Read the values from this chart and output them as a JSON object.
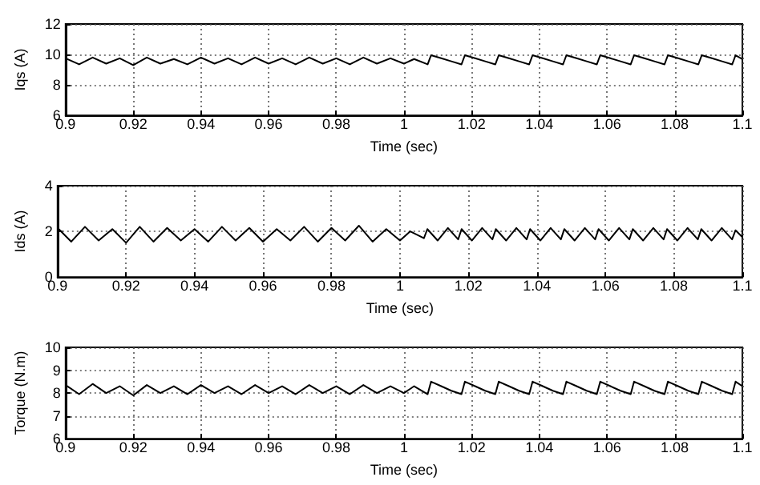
{
  "chart_data": [
    {
      "type": "line",
      "xlabel": "Time (sec)",
      "ylabel": "Iqs (A)",
      "xlim": [
        0.9,
        1.1
      ],
      "xticks": [
        0.9,
        0.92,
        0.94,
        0.96,
        0.98,
        1,
        1.02,
        1.04,
        1.06,
        1.08,
        1.1
      ],
      "ylim": [
        6,
        12
      ],
      "yticks": [
        6,
        8,
        10,
        12
      ],
      "grid": true,
      "x": [
        0.9,
        0.904,
        0.908,
        0.912,
        0.916,
        0.92,
        0.924,
        0.928,
        0.932,
        0.936,
        0.94,
        0.944,
        0.948,
        0.952,
        0.956,
        0.96,
        0.964,
        0.968,
        0.972,
        0.976,
        0.98,
        0.984,
        0.988,
        0.992,
        0.996,
        1.0,
        1.003,
        1.007,
        1.008,
        1.011,
        1.014,
        1.017,
        1.018,
        1.021,
        1.024,
        1.027,
        1.028,
        1.031,
        1.034,
        1.037,
        1.038,
        1.041,
        1.044,
        1.047,
        1.048,
        1.051,
        1.054,
        1.057,
        1.058,
        1.061,
        1.064,
        1.067,
        1.068,
        1.071,
        1.074,
        1.077,
        1.078,
        1.081,
        1.084,
        1.087,
        1.088,
        1.091,
        1.094,
        1.097,
        1.098,
        1.1
      ],
      "series": [
        {
          "color": "#000000",
          "values": [
            9.75,
            9.35,
            9.8,
            9.4,
            9.75,
            9.3,
            9.8,
            9.4,
            9.7,
            9.35,
            9.8,
            9.4,
            9.75,
            9.35,
            9.8,
            9.4,
            9.75,
            9.35,
            9.8,
            9.4,
            9.75,
            9.35,
            9.8,
            9.4,
            9.75,
            9.4,
            9.7,
            9.35,
            9.95,
            9.75,
            9.55,
            9.35,
            9.95,
            9.75,
            9.55,
            9.35,
            9.95,
            9.75,
            9.55,
            9.35,
            9.95,
            9.75,
            9.55,
            9.35,
            9.95,
            9.75,
            9.55,
            9.35,
            9.95,
            9.75,
            9.55,
            9.35,
            9.95,
            9.75,
            9.55,
            9.35,
            9.95,
            9.75,
            9.55,
            9.35,
            9.95,
            9.75,
            9.55,
            9.35,
            9.95,
            9.7
          ]
        }
      ]
    },
    {
      "type": "line",
      "xlabel": "Time (sec)",
      "ylabel": "Ids (A)",
      "xlim": [
        0.9,
        1.1
      ],
      "xticks": [
        0.9,
        0.92,
        0.94,
        0.96,
        0.98,
        1,
        1.02,
        1.04,
        1.06,
        1.08,
        1.1
      ],
      "ylim": [
        0,
        4
      ],
      "yticks": [
        0,
        2,
        4
      ],
      "grid": true,
      "x": [
        0.9,
        0.904,
        0.908,
        0.912,
        0.916,
        0.92,
        0.924,
        0.928,
        0.932,
        0.936,
        0.94,
        0.944,
        0.948,
        0.952,
        0.956,
        0.96,
        0.964,
        0.968,
        0.972,
        0.976,
        0.98,
        0.984,
        0.988,
        0.992,
        0.996,
        1.0,
        1.003,
        1.007,
        1.008,
        1.011,
        1.014,
        1.017,
        1.018,
        1.021,
        1.024,
        1.027,
        1.028,
        1.031,
        1.034,
        1.037,
        1.038,
        1.041,
        1.044,
        1.047,
        1.048,
        1.051,
        1.054,
        1.057,
        1.058,
        1.061,
        1.064,
        1.067,
        1.068,
        1.071,
        1.074,
        1.077,
        1.078,
        1.081,
        1.084,
        1.087,
        1.088,
        1.091,
        1.094,
        1.097,
        1.098,
        1.1
      ],
      "series": [
        {
          "color": "#000000",
          "values": [
            2.15,
            1.55,
            2.2,
            1.6,
            2.1,
            1.5,
            2.2,
            1.55,
            2.15,
            1.6,
            2.1,
            1.55,
            2.2,
            1.6,
            2.15,
            1.55,
            2.1,
            1.6,
            2.2,
            1.55,
            2.15,
            1.6,
            2.25,
            1.55,
            2.1,
            1.6,
            2.0,
            1.7,
            2.1,
            1.6,
            2.15,
            1.65,
            2.1,
            1.6,
            2.15,
            1.65,
            2.1,
            1.6,
            2.15,
            1.65,
            2.1,
            1.6,
            2.15,
            1.65,
            2.1,
            1.6,
            2.15,
            1.65,
            2.1,
            1.6,
            2.15,
            1.65,
            2.1,
            1.6,
            2.15,
            1.65,
            2.1,
            1.6,
            2.15,
            1.65,
            2.1,
            1.6,
            2.15,
            1.65,
            2.05,
            1.75
          ]
        }
      ]
    },
    {
      "type": "line",
      "xlabel": "Time (sec)",
      "ylabel": "Torque (N.m)",
      "xlim": [
        0.9,
        1.1
      ],
      "xticks": [
        0.9,
        0.92,
        0.94,
        0.96,
        0.98,
        1,
        1.02,
        1.04,
        1.06,
        1.08,
        1.1
      ],
      "ylim": [
        6,
        10
      ],
      "yticks": [
        6,
        7,
        8,
        9,
        10
      ],
      "grid": true,
      "x": [
        0.9,
        0.904,
        0.908,
        0.912,
        0.916,
        0.92,
        0.924,
        0.928,
        0.932,
        0.936,
        0.94,
        0.944,
        0.948,
        0.952,
        0.956,
        0.96,
        0.964,
        0.968,
        0.972,
        0.976,
        0.98,
        0.984,
        0.988,
        0.992,
        0.996,
        1.0,
        1.003,
        1.007,
        1.008,
        1.011,
        1.014,
        1.017,
        1.018,
        1.021,
        1.024,
        1.027,
        1.028,
        1.031,
        1.034,
        1.037,
        1.038,
        1.041,
        1.044,
        1.047,
        1.048,
        1.051,
        1.054,
        1.057,
        1.058,
        1.061,
        1.064,
        1.067,
        1.068,
        1.071,
        1.074,
        1.077,
        1.078,
        1.081,
        1.084,
        1.087,
        1.088,
        1.091,
        1.094,
        1.097,
        1.098,
        1.1
      ],
      "series": [
        {
          "color": "#000000",
          "values": [
            8.35,
            7.95,
            8.4,
            8.0,
            8.3,
            7.9,
            8.35,
            8.0,
            8.3,
            7.95,
            8.35,
            8.0,
            8.3,
            7.95,
            8.35,
            8.0,
            8.3,
            7.95,
            8.35,
            8.0,
            8.3,
            7.95,
            8.35,
            8.0,
            8.3,
            8.0,
            8.3,
            7.95,
            8.5,
            8.3,
            8.1,
            7.95,
            8.5,
            8.3,
            8.1,
            7.95,
            8.5,
            8.3,
            8.1,
            7.95,
            8.5,
            8.3,
            8.1,
            7.95,
            8.5,
            8.3,
            8.1,
            7.95,
            8.5,
            8.3,
            8.1,
            7.95,
            8.5,
            8.3,
            8.1,
            7.95,
            8.5,
            8.3,
            8.1,
            7.95,
            8.5,
            8.3,
            8.1,
            7.95,
            8.5,
            8.3
          ]
        }
      ]
    }
  ]
}
